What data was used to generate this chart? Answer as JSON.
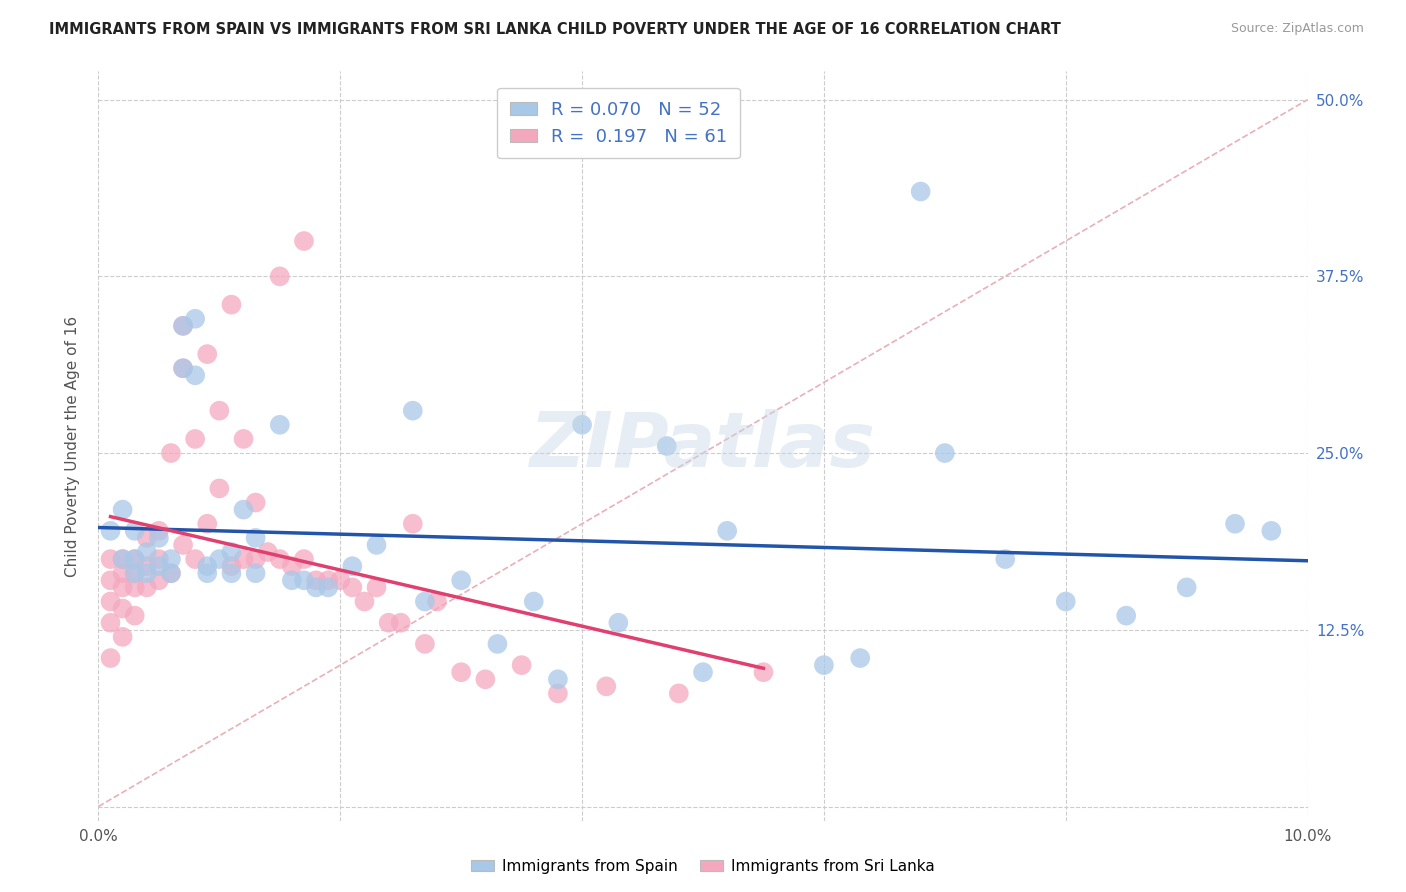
{
  "title": "IMMIGRANTS FROM SPAIN VS IMMIGRANTS FROM SRI LANKA CHILD POVERTY UNDER THE AGE OF 16 CORRELATION CHART",
  "source": "Source: ZipAtlas.com",
  "ylabel": "Child Poverty Under the Age of 16",
  "xlim": [
    0.0,
    0.1
  ],
  "ylim": [
    -0.01,
    0.52
  ],
  "spain_R": 0.07,
  "spain_N": 52,
  "srilanka_R": 0.197,
  "srilanka_N": 61,
  "spain_color": "#a8c8e8",
  "srilanka_color": "#f4a8be",
  "spain_line_color": "#2255aa",
  "srilanka_line_color": "#e04070",
  "ref_line_color": "#e8b0b8",
  "watermark": "ZIPatlas",
  "spain_scatter_x": [
    0.001,
    0.002,
    0.002,
    0.003,
    0.003,
    0.003,
    0.004,
    0.004,
    0.005,
    0.005,
    0.006,
    0.006,
    0.007,
    0.007,
    0.008,
    0.008,
    0.009,
    0.009,
    0.01,
    0.011,
    0.011,
    0.012,
    0.013,
    0.013,
    0.015,
    0.016,
    0.017,
    0.018,
    0.019,
    0.021,
    0.023,
    0.026,
    0.027,
    0.03,
    0.033,
    0.036,
    0.038,
    0.04,
    0.043,
    0.047,
    0.05,
    0.052,
    0.06,
    0.063,
    0.068,
    0.07,
    0.075,
    0.08,
    0.085,
    0.09,
    0.094,
    0.097
  ],
  "spain_scatter_y": [
    0.195,
    0.175,
    0.21,
    0.175,
    0.165,
    0.195,
    0.165,
    0.18,
    0.19,
    0.17,
    0.175,
    0.165,
    0.34,
    0.31,
    0.345,
    0.305,
    0.17,
    0.165,
    0.175,
    0.18,
    0.165,
    0.21,
    0.165,
    0.19,
    0.27,
    0.16,
    0.16,
    0.155,
    0.155,
    0.17,
    0.185,
    0.28,
    0.145,
    0.16,
    0.115,
    0.145,
    0.09,
    0.27,
    0.13,
    0.255,
    0.095,
    0.195,
    0.1,
    0.105,
    0.435,
    0.25,
    0.175,
    0.145,
    0.135,
    0.155,
    0.2,
    0.195
  ],
  "srilanka_scatter_x": [
    0.001,
    0.001,
    0.001,
    0.001,
    0.001,
    0.002,
    0.002,
    0.002,
    0.002,
    0.002,
    0.003,
    0.003,
    0.003,
    0.003,
    0.004,
    0.004,
    0.004,
    0.005,
    0.005,
    0.005,
    0.006,
    0.006,
    0.007,
    0.007,
    0.007,
    0.008,
    0.008,
    0.009,
    0.009,
    0.01,
    0.01,
    0.011,
    0.011,
    0.012,
    0.012,
    0.013,
    0.013,
    0.014,
    0.015,
    0.015,
    0.016,
    0.017,
    0.017,
    0.018,
    0.019,
    0.02,
    0.021,
    0.022,
    0.023,
    0.024,
    0.025,
    0.026,
    0.027,
    0.028,
    0.03,
    0.032,
    0.035,
    0.038,
    0.042,
    0.048,
    0.055
  ],
  "srilanka_scatter_y": [
    0.175,
    0.16,
    0.145,
    0.13,
    0.105,
    0.175,
    0.165,
    0.155,
    0.14,
    0.12,
    0.175,
    0.165,
    0.155,
    0.135,
    0.19,
    0.17,
    0.155,
    0.195,
    0.175,
    0.16,
    0.25,
    0.165,
    0.34,
    0.31,
    0.185,
    0.26,
    0.175,
    0.32,
    0.2,
    0.28,
    0.225,
    0.355,
    0.17,
    0.26,
    0.175,
    0.215,
    0.175,
    0.18,
    0.375,
    0.175,
    0.17,
    0.4,
    0.175,
    0.16,
    0.16,
    0.16,
    0.155,
    0.145,
    0.155,
    0.13,
    0.13,
    0.2,
    0.115,
    0.145,
    0.095,
    0.09,
    0.1,
    0.08,
    0.085,
    0.08,
    0.095
  ]
}
